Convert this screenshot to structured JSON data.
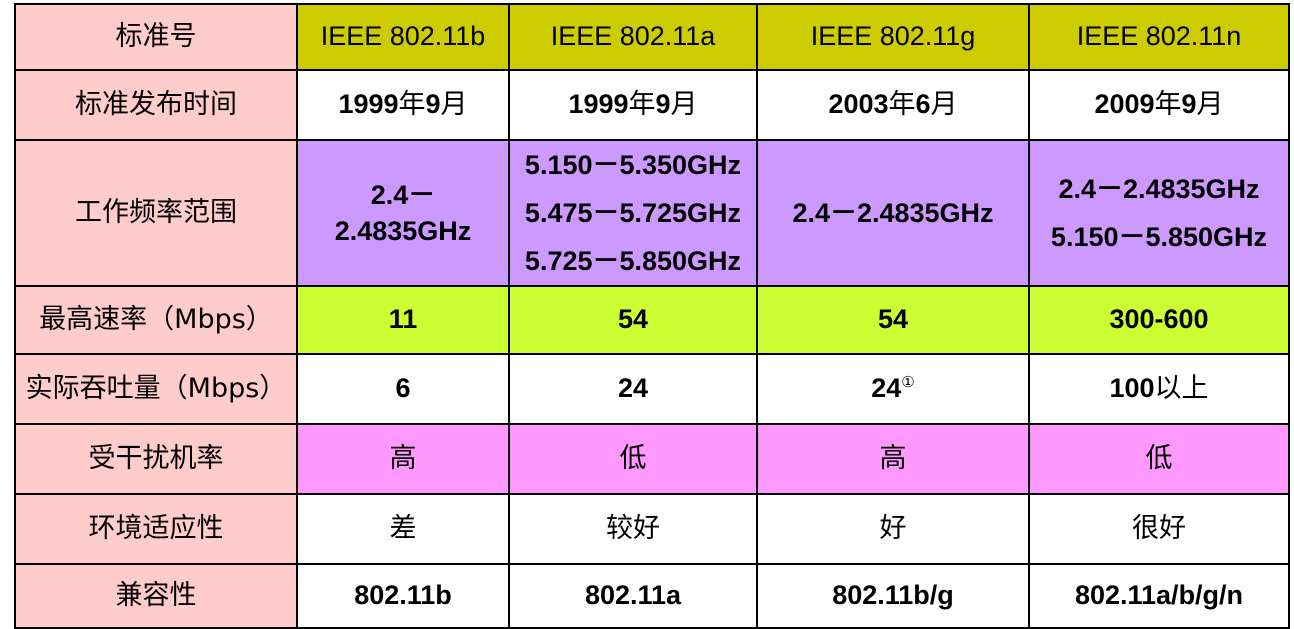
{
  "rows": {
    "standard": {
      "label": "标准号",
      "values": [
        "IEEE 802.11b",
        "IEEE 802.11a",
        "IEEE 802.11g",
        "IEEE 802.11n"
      ]
    },
    "release_date": {
      "label": "标准发布时间",
      "values": [
        {
          "year": "1999",
          "year_unit": "年",
          "month": "9",
          "month_unit": "月"
        },
        {
          "year": "1999",
          "year_unit": "年",
          "month": "9",
          "month_unit": "月"
        },
        {
          "year": "2003",
          "year_unit": "年",
          "month": "6",
          "month_unit": "月"
        },
        {
          "year": "2009",
          "year_unit": "年",
          "month": "9",
          "month_unit": "月"
        }
      ]
    },
    "frequency": {
      "label": "工作频率范围",
      "values": [
        [
          "2.4－",
          "2.4835GHz"
        ],
        [
          "5.150－5.350GHz",
          "5.475－5.725GHz",
          "5.725－5.850GHz"
        ],
        [
          "2.4－2.4835GHz"
        ],
        [
          "2.4－2.4835GHz",
          "5.150－5.850GHz"
        ]
      ]
    },
    "max_rate": {
      "label": "最高速率（Mbps）",
      "values": [
        "11",
        "54",
        "54",
        "300-600"
      ]
    },
    "throughput": {
      "label": "实际吞吐量（Mbps）",
      "values": [
        {
          "num": "6",
          "suffix": "",
          "note": ""
        },
        {
          "num": "24",
          "suffix": "",
          "note": ""
        },
        {
          "num": "24",
          "suffix": "",
          "note": "①"
        },
        {
          "num": "100",
          "suffix": "以上",
          "note": ""
        }
      ]
    },
    "interference": {
      "label": "受干扰机率",
      "values": [
        "高",
        "低",
        "高",
        "低"
      ]
    },
    "environment": {
      "label": "环境适应性",
      "values": [
        "差",
        "较好",
        "好",
        "很好"
      ]
    },
    "compatibility": {
      "label": "兼容性",
      "values": [
        "802.11b",
        "802.11a",
        "802.11b/g",
        "802.11a/b/g/n"
      ]
    }
  },
  "colors": {
    "row_label_bg": "#ffcccc",
    "header_bg": "#cccc00",
    "frequency_bg": "#cc99ff",
    "max_rate_bg": "#ccff33",
    "interference_bg": "#ff99ff",
    "border": "#000000"
  }
}
